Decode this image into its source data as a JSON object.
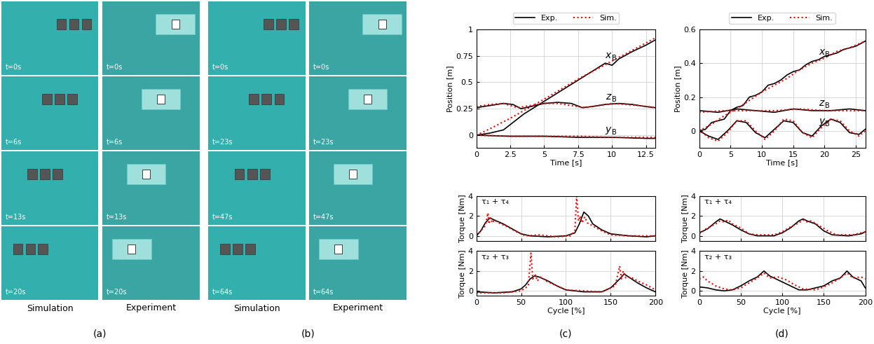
{
  "panel_labels": [
    "(a)",
    "(b)",
    "(c)",
    "(d)"
  ],
  "image_panels": [
    {
      "columns": [
        "Simulation",
        "Experiment"
      ],
      "times": [
        "t=0s",
        "t=6s",
        "t=13s",
        "t=20s"
      ]
    },
    {
      "columns": [
        "Simulation",
        "Experiment"
      ],
      "times": [
        "t=0s",
        "t=23s",
        "t=47s",
        "t=64s"
      ]
    }
  ],
  "chart_data": [
    {
      "type": "line",
      "xlabel": "Time [s]",
      "ylabel": "Position [m]",
      "xlim": [
        0,
        13.2
      ],
      "xticks": [
        0,
        2.5,
        5,
        7.5,
        10,
        12.5
      ],
      "ylim": [
        -0.12,
        1
      ],
      "yticks": [
        0,
        0.25,
        0.5,
        0.75,
        1
      ],
      "grid": true,
      "legend": "top",
      "series": [
        {
          "name": "Exp.",
          "color": "#000000",
          "line_style": "solid",
          "curve": {
            "text": "x",
            "subscript": "B"
          },
          "x": [
            0,
            1,
            2,
            2.5,
            3.5,
            5,
            6,
            7.5,
            8.5,
            9.5,
            10,
            10.5,
            11.5,
            12.5,
            13.2
          ],
          "values": [
            0,
            0.02,
            0.05,
            0.1,
            0.2,
            0.32,
            0.4,
            0.52,
            0.6,
            0.68,
            0.66,
            0.72,
            0.79,
            0.85,
            0.9
          ]
        },
        {
          "name": "Sim.",
          "color": "#ff0000",
          "line_style": "dotted",
          "x": [
            0,
            1,
            2.5,
            5,
            7.5,
            10,
            12.5,
            13.2
          ],
          "values": [
            0,
            0.06,
            0.16,
            0.34,
            0.53,
            0.7,
            0.87,
            0.92
          ]
        },
        {
          "name": "Exp.",
          "color": "#000000",
          "line_style": "solid",
          "curve": {
            "text": "z",
            "subscript": "B"
          },
          "x": [
            0,
            1,
            2,
            2.7,
            3.3,
            4,
            5,
            6,
            7,
            7.8,
            8.5,
            9.5,
            10.5,
            11.5,
            12.5,
            13.2
          ],
          "values": [
            0.26,
            0.28,
            0.3,
            0.29,
            0.25,
            0.27,
            0.3,
            0.31,
            0.3,
            0.26,
            0.27,
            0.29,
            0.3,
            0.29,
            0.27,
            0.26
          ]
        },
        {
          "name": "Sim.",
          "color": "#ff0000",
          "line_style": "dotted",
          "x": [
            0,
            1,
            2,
            3,
            4,
            5,
            6,
            7,
            8,
            9,
            10,
            11,
            12,
            13.2
          ],
          "values": [
            0.27,
            0.29,
            0.3,
            0.26,
            0.28,
            0.3,
            0.3,
            0.28,
            0.26,
            0.28,
            0.3,
            0.29,
            0.28,
            0.26
          ]
        },
        {
          "name": "Exp.",
          "color": "#000000",
          "line_style": "solid",
          "curve": {
            "text": "y",
            "subscript": "B"
          },
          "x": [
            0,
            2.5,
            5,
            7.5,
            10,
            12.5,
            13.2
          ],
          "values": [
            0,
            -0.01,
            -0.01,
            -0.02,
            -0.02,
            -0.03,
            -0.03
          ]
        },
        {
          "name": "Sim.",
          "color": "#ff0000",
          "line_style": "dotted",
          "x": [
            0,
            2.5,
            5,
            7.5,
            10,
            13.2
          ],
          "values": [
            0,
            -0.01,
            -0.01,
            -0.01,
            -0.02,
            -0.02
          ]
        }
      ]
    },
    {
      "type": "line",
      "ylabel": "Torque [Nm]",
      "annotation": "τ₁ + τ₄",
      "xlim": [
        0,
        200
      ],
      "xticks": [
        0,
        50,
        100,
        150,
        200
      ],
      "ylim": [
        -0.5,
        4
      ],
      "yticks": [
        0,
        2,
        4
      ],
      "grid": true,
      "tick_labels": "y",
      "series": [
        {
          "name": "Exp.",
          "color": "#000000",
          "line_style": "solid",
          "x": [
            0,
            5,
            10,
            15,
            20,
            30,
            40,
            50,
            60,
            80,
            100,
            110,
            115,
            120,
            125,
            130,
            140,
            150,
            170,
            190,
            200
          ],
          "values": [
            0,
            0.5,
            1.3,
            1.8,
            1.6,
            1.2,
            0.7,
            0.2,
            0,
            -0.1,
            0,
            0.3,
            1.2,
            2.4,
            2.0,
            1.2,
            0.6,
            0.2,
            0,
            -0.1,
            0
          ]
        },
        {
          "name": "Sim.",
          "color": "#ff0000",
          "line_style": "dotted",
          "x": [
            0,
            10,
            13,
            14,
            16,
            18,
            20,
            25,
            35,
            45,
            55,
            70,
            90,
            105,
            110,
            112,
            114,
            116,
            118,
            121,
            124,
            130,
            140,
            150,
            170,
            200
          ],
          "values": [
            0,
            1.0,
            2.3,
            1.2,
            1.8,
            1.3,
            1.6,
            1.3,
            0.9,
            0.4,
            0,
            0.1,
            -0.1,
            0,
            0.5,
            4.0,
            1.5,
            2.0,
            1.3,
            1.9,
            1.3,
            1.0,
            0.5,
            0.1,
            0,
            0
          ]
        }
      ]
    },
    {
      "type": "line",
      "xlabel": "Cycle [%]",
      "ylabel": "Torque [Nm]",
      "annotation": "τ₂ + τ₃",
      "xlim": [
        0,
        200
      ],
      "xticks": [
        0,
        50,
        100,
        150,
        200
      ],
      "ylim": [
        -0.5,
        4
      ],
      "yticks": [
        0,
        2,
        4
      ],
      "grid": true,
      "series": [
        {
          "name": "Exp.",
          "color": "#000000",
          "line_style": "solid",
          "x": [
            0,
            20,
            40,
            50,
            55,
            60,
            65,
            70,
            80,
            90,
            100,
            120,
            140,
            150,
            160,
            165,
            170,
            180,
            190,
            200
          ],
          "values": [
            -0.1,
            -0.2,
            -0.1,
            0.2,
            0.6,
            1.2,
            1.5,
            1.4,
            1.0,
            0.5,
            0.1,
            -0.1,
            -0.1,
            0.3,
            1.2,
            1.7,
            1.4,
            0.8,
            0.3,
            -0.1
          ]
        },
        {
          "name": "Sim.",
          "color": "#ff0000",
          "line_style": "dotted",
          "x": [
            0,
            30,
            50,
            58,
            61,
            63,
            66,
            68,
            72,
            78,
            90,
            100,
            120,
            140,
            155,
            160,
            162,
            164,
            167,
            172,
            180,
            190,
            200
          ],
          "values": [
            -0.2,
            -0.2,
            0,
            0.5,
            3.8,
            1.2,
            1.6,
            1.0,
            1.4,
            1.0,
            0.5,
            0.1,
            0,
            -0.1,
            0.5,
            2.5,
            1.2,
            2.0,
            1.3,
            1.4,
            1.0,
            0.6,
            0.1
          ]
        }
      ]
    },
    {
      "type": "line",
      "xlabel": "Time [s]",
      "ylabel": "Position [m]",
      "xlim": [
        0,
        26.5
      ],
      "xticks": [
        0,
        5,
        10,
        15,
        20,
        25
      ],
      "ylim": [
        -0.1,
        0.6
      ],
      "yticks": [
        0,
        0.2,
        0.4,
        0.6
      ],
      "grid": true,
      "legend": "top",
      "series": [
        {
          "name": "Exp.",
          "color": "#000000",
          "line_style": "solid",
          "curve": {
            "text": "x",
            "subscript": "B"
          },
          "x": [
            0,
            1,
            2,
            3,
            4,
            5,
            6,
            7,
            8,
            9,
            10,
            11,
            12,
            13,
            14,
            15,
            16,
            17,
            18,
            19,
            20,
            21,
            22,
            23,
            24,
            25,
            26.5
          ],
          "values": [
            0,
            0.01,
            0.05,
            0.06,
            0.07,
            0.12,
            0.14,
            0.15,
            0.2,
            0.21,
            0.23,
            0.27,
            0.28,
            0.3,
            0.33,
            0.35,
            0.36,
            0.39,
            0.41,
            0.42,
            0.44,
            0.45,
            0.46,
            0.48,
            0.49,
            0.5,
            0.53
          ]
        },
        {
          "name": "Sim.",
          "color": "#ff0000",
          "line_style": "dotted",
          "x": [
            0,
            2,
            4,
            6,
            8,
            10,
            12,
            14,
            16,
            18,
            20,
            22,
            24,
            26.5
          ],
          "values": [
            0,
            0.04,
            0.09,
            0.13,
            0.18,
            0.23,
            0.27,
            0.31,
            0.36,
            0.4,
            0.43,
            0.47,
            0.49,
            0.53
          ]
        },
        {
          "name": "Exp.",
          "color": "#000000",
          "line_style": "solid",
          "curve": {
            "text": "z",
            "subscript": "B"
          },
          "x": [
            0,
            3,
            6,
            9,
            12,
            15,
            18,
            21,
            24,
            26.5
          ],
          "values": [
            0.12,
            0.11,
            0.13,
            0.12,
            0.11,
            0.13,
            0.12,
            0.12,
            0.13,
            0.12
          ]
        },
        {
          "name": "Sim.",
          "color": "#ff0000",
          "line_style": "dotted",
          "x": [
            0,
            4,
            8,
            12,
            16,
            20,
            24,
            26.5
          ],
          "values": [
            0.11,
            0.12,
            0.12,
            0.12,
            0.13,
            0.12,
            0.12,
            0.12
          ]
        },
        {
          "name": "Exp.",
          "color": "#000000",
          "line_style": "solid",
          "curve": {
            "text": "y",
            "subscript": "B"
          },
          "x": [
            0,
            1.5,
            3,
            4.5,
            6,
            7.5,
            9,
            10.5,
            12,
            13.5,
            15,
            16.5,
            18,
            19.5,
            21,
            22.5,
            24,
            25.5,
            26.5
          ],
          "values": [
            0,
            -0.03,
            -0.05,
            0,
            0.06,
            0.05,
            -0.01,
            -0.04,
            0.01,
            0.06,
            0.05,
            -0.01,
            -0.03,
            0.03,
            0.07,
            0.05,
            -0.01,
            -0.02,
            0.01
          ]
        },
        {
          "name": "Sim.",
          "color": "#ff0000",
          "line_style": "dotted",
          "x": [
            0,
            1.5,
            3,
            4.5,
            6,
            7.5,
            9,
            10.5,
            12,
            13.5,
            15,
            16.5,
            18,
            19.5,
            21,
            22.5,
            24,
            25.5,
            26.5
          ],
          "values": [
            0.01,
            -0.04,
            -0.06,
            -0.01,
            0.06,
            0.06,
            0,
            -0.05,
            0,
            0.07,
            0.06,
            -0.01,
            -0.04,
            0.02,
            0.07,
            0.06,
            0,
            -0.03,
            0
          ]
        }
      ]
    },
    {
      "type": "line",
      "ylabel": "Torque [Nm]",
      "annotation": "τ₁ + τ₄",
      "xlim": [
        0,
        200
      ],
      "xticks": [
        0,
        50,
        100,
        150,
        200
      ],
      "ylim": [
        -0.5,
        4
      ],
      "yticks": [
        0,
        2,
        4
      ],
      "grid": true,
      "tick_labels": "y",
      "series": [
        {
          "name": "Exp.",
          "color": "#000000",
          "line_style": "solid",
          "x": [
            0,
            10,
            20,
            25,
            30,
            40,
            50,
            60,
            70,
            90,
            100,
            110,
            120,
            125,
            130,
            140,
            150,
            160,
            180,
            195,
            200
          ],
          "values": [
            0.3,
            0.7,
            1.4,
            1.7,
            1.5,
            1.1,
            0.6,
            0.2,
            0,
            0,
            0.3,
            0.8,
            1.5,
            1.7,
            1.5,
            1.2,
            0.5,
            0.1,
            0,
            0.2,
            0.4
          ]
        },
        {
          "name": "Sim.",
          "color": "#ff0000",
          "line_style": "dotted",
          "x": [
            0,
            10,
            20,
            25,
            30,
            35,
            40,
            50,
            60,
            70,
            90,
            100,
            110,
            120,
            125,
            130,
            135,
            145,
            155,
            165,
            185,
            200
          ],
          "values": [
            0.2,
            0.8,
            1.2,
            1.5,
            1.4,
            1.6,
            1.2,
            0.8,
            0.2,
            0.1,
            0.1,
            0.4,
            0.9,
            1.3,
            1.6,
            1.4,
            1.5,
            1.0,
            0.5,
            0.1,
            0.1,
            0.4
          ]
        }
      ]
    },
    {
      "type": "line",
      "xlabel": "Cycle [%]",
      "ylabel": "Torque [Nm]",
      "annotation": "τ₂ + τ₃",
      "xlim": [
        0,
        200
      ],
      "xticks": [
        0,
        50,
        100,
        150,
        200
      ],
      "ylim": [
        -0.5,
        4
      ],
      "yticks": [
        0,
        2,
        4
      ],
      "grid": true,
      "series": [
        {
          "name": "Exp.",
          "color": "#000000",
          "line_style": "solid",
          "x": [
            0,
            10,
            20,
            30,
            40,
            50,
            60,
            70,
            78,
            85,
            95,
            110,
            120,
            130,
            140,
            150,
            160,
            170,
            178,
            185,
            195,
            200
          ],
          "values": [
            0.4,
            0.3,
            0.1,
            0,
            0.1,
            0.5,
            1.0,
            1.4,
            2.0,
            1.5,
            1.1,
            0.5,
            0.1,
            0.1,
            0.3,
            0.5,
            1.0,
            1.3,
            2.0,
            1.4,
            1.0,
            0.3
          ]
        },
        {
          "name": "Sim.",
          "color": "#ff0000",
          "line_style": "dotted",
          "x": [
            0,
            5,
            10,
            20,
            30,
            40,
            50,
            60,
            70,
            78,
            85,
            95,
            105,
            115,
            125,
            140,
            150,
            160,
            170,
            178,
            185,
            195,
            200
          ],
          "values": [
            1.2,
            1.4,
            1.0,
            0.5,
            0.2,
            0.1,
            0.3,
            0.8,
            1.3,
            1.8,
            1.3,
            1.4,
            1.1,
            0.6,
            0.2,
            0.1,
            0.4,
            0.8,
            1.3,
            1.8,
            1.3,
            1.4,
            1.2
          ]
        }
      ]
    }
  ]
}
